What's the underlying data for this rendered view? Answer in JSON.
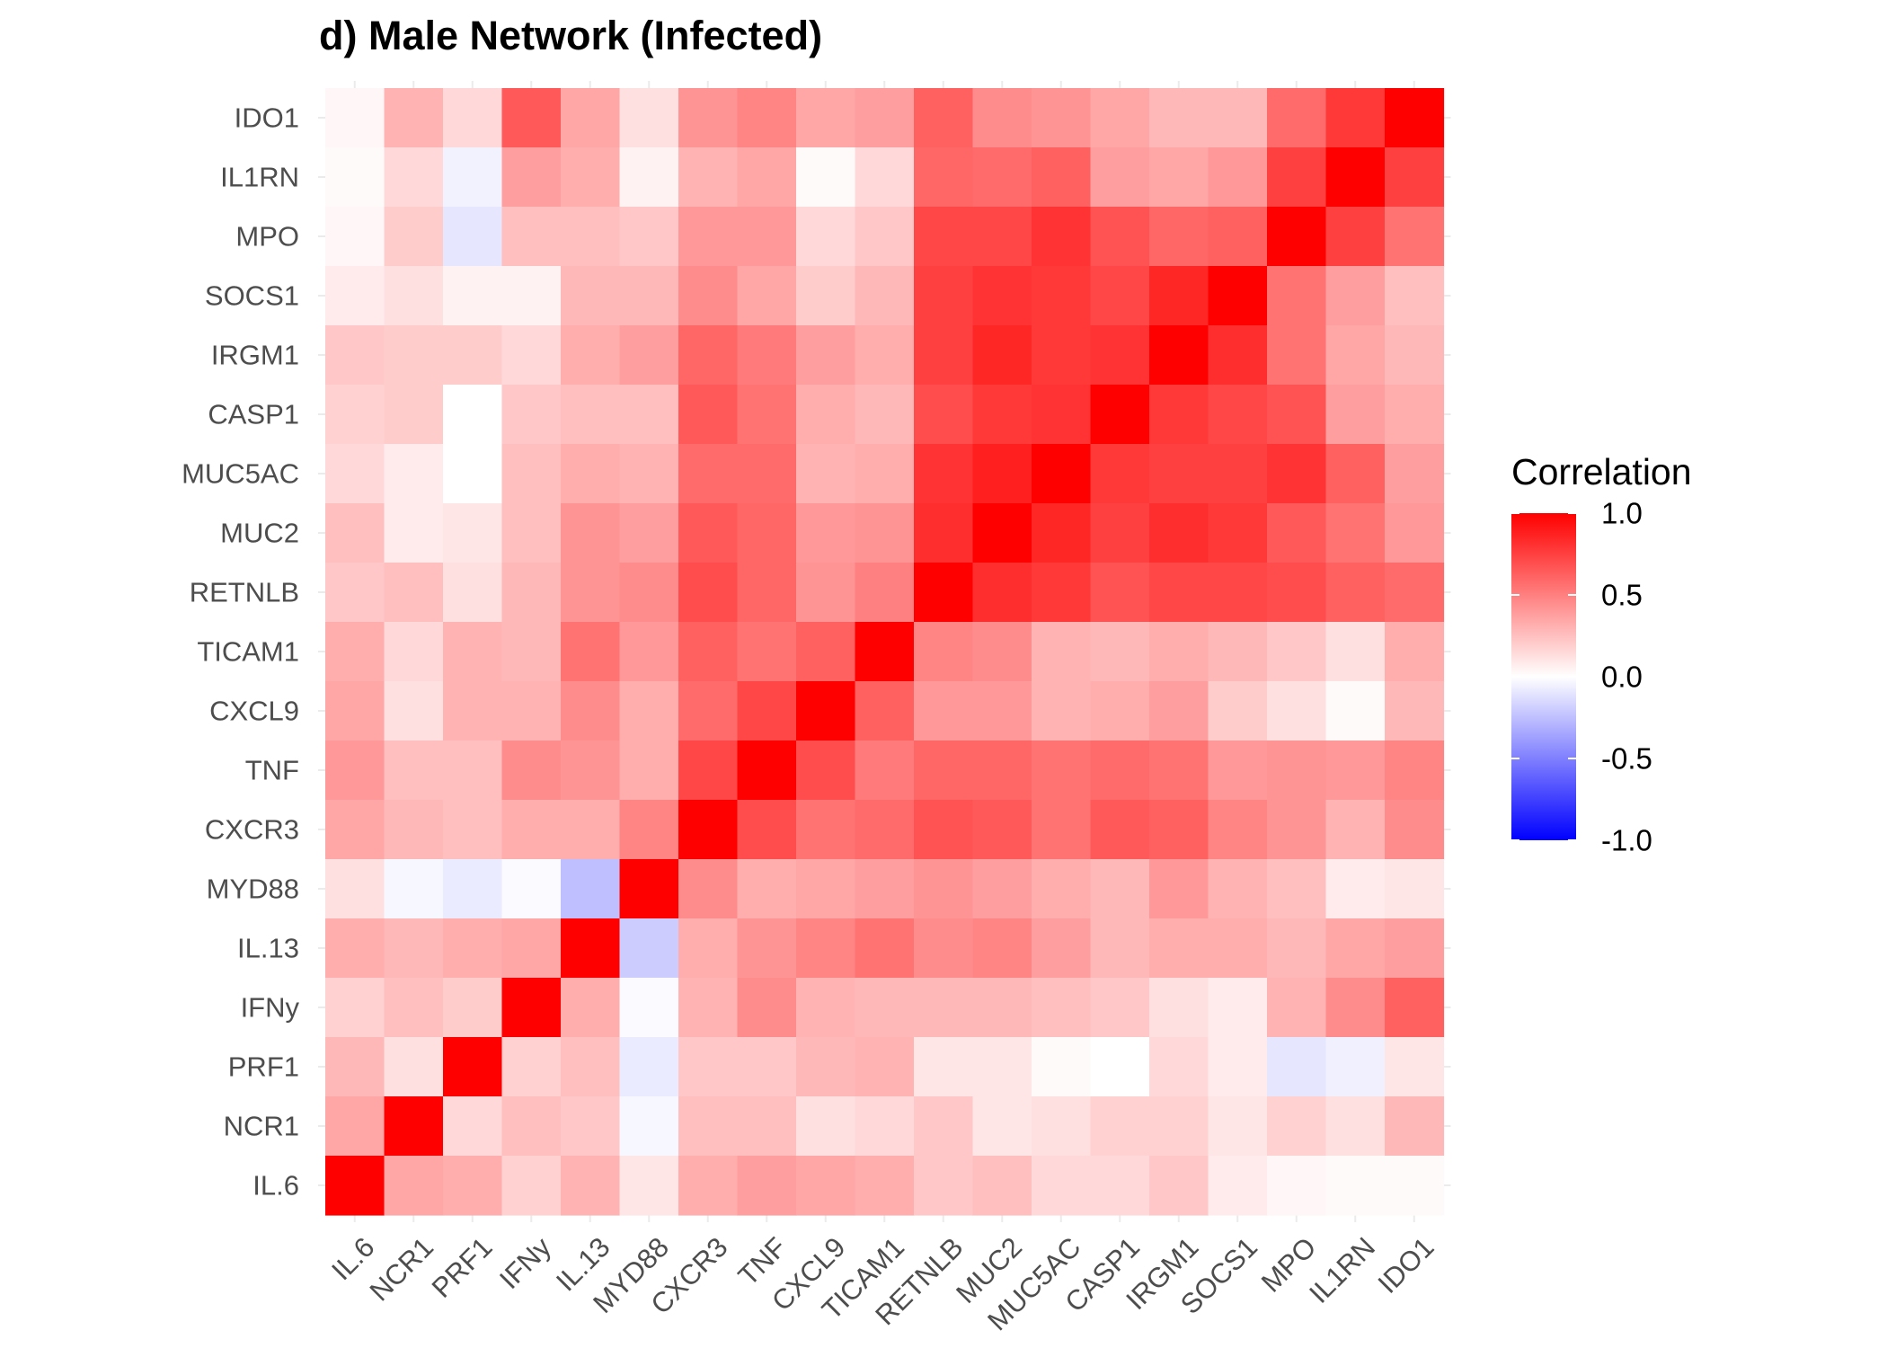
{
  "chart_data": {
    "type": "heatmap",
    "title": "d) Male Network (Infected)",
    "xlabel": "",
    "ylabel": "",
    "x_labels": [
      "IL.6",
      "NCR1",
      "PRF1",
      "IFNy",
      "IL.13",
      "MYD88",
      "CXCR3",
      "TNF",
      "CXCL9",
      "TICAM1",
      "RETNLB",
      "MUC2",
      "MUC5AC",
      "CASP1",
      "IRGM1",
      "SOCS1",
      "MPO",
      "IL1RN",
      "IDO1"
    ],
    "y_labels_top_to_bottom": [
      "IDO1",
      "IL1RN",
      "MPO",
      "SOCS1",
      "IRGM1",
      "CASP1",
      "MUC5AC",
      "MUC2",
      "RETNLB",
      "TICAM1",
      "CXCL9",
      "TNF",
      "CXCR3",
      "MYD88",
      "IL.13",
      "IFNy",
      "PRF1",
      "NCR1",
      "IL.6"
    ],
    "values": [
      [
        0.03,
        0.3,
        0.15,
        0.65,
        0.35,
        0.12,
        0.42,
        0.48,
        0.35,
        0.38,
        0.62,
        0.45,
        0.42,
        0.35,
        0.28,
        0.28,
        0.58,
        0.78,
        1.0
      ],
      [
        0.02,
        0.15,
        -0.05,
        0.38,
        0.32,
        0.05,
        0.3,
        0.35,
        0.02,
        0.15,
        0.6,
        0.58,
        0.62,
        0.38,
        0.35,
        0.4,
        0.75,
        1.0,
        0.75
      ],
      [
        0.03,
        0.2,
        -0.1,
        0.25,
        0.25,
        0.22,
        0.4,
        0.4,
        0.15,
        0.22,
        0.72,
        0.72,
        0.8,
        0.68,
        0.6,
        0.62,
        1.0,
        0.75,
        0.55
      ],
      [
        0.08,
        0.12,
        0.05,
        0.05,
        0.28,
        0.28,
        0.45,
        0.35,
        0.2,
        0.28,
        0.75,
        0.8,
        0.78,
        0.72,
        0.85,
        1.0,
        0.55,
        0.38,
        0.25
      ],
      [
        0.22,
        0.2,
        0.2,
        0.15,
        0.32,
        0.38,
        0.6,
        0.52,
        0.38,
        0.32,
        0.75,
        0.85,
        0.78,
        0.8,
        1.0,
        0.82,
        0.55,
        0.35,
        0.28
      ],
      [
        0.18,
        0.2,
        0.0,
        0.22,
        0.25,
        0.25,
        0.65,
        0.55,
        0.32,
        0.28,
        0.7,
        0.78,
        0.8,
        1.0,
        0.78,
        0.72,
        0.68,
        0.38,
        0.32
      ],
      [
        0.15,
        0.08,
        0.0,
        0.25,
        0.32,
        0.3,
        0.58,
        0.58,
        0.3,
        0.32,
        0.8,
        0.88,
        1.0,
        0.78,
        0.75,
        0.75,
        0.8,
        0.62,
        0.38
      ],
      [
        0.25,
        0.08,
        0.1,
        0.25,
        0.42,
        0.38,
        0.65,
        0.6,
        0.4,
        0.42,
        0.82,
        1.0,
        0.85,
        0.75,
        0.82,
        0.78,
        0.65,
        0.55,
        0.4
      ],
      [
        0.22,
        0.25,
        0.12,
        0.28,
        0.42,
        0.45,
        0.7,
        0.6,
        0.42,
        0.5,
        1.0,
        0.82,
        0.78,
        0.68,
        0.72,
        0.72,
        0.7,
        0.62,
        0.58
      ],
      [
        0.32,
        0.15,
        0.3,
        0.28,
        0.55,
        0.4,
        0.62,
        0.55,
        0.62,
        1.0,
        0.48,
        0.45,
        0.3,
        0.28,
        0.32,
        0.28,
        0.22,
        0.12,
        0.32
      ],
      [
        0.35,
        0.12,
        0.3,
        0.3,
        0.45,
        0.32,
        0.58,
        0.72,
        1.0,
        0.62,
        0.4,
        0.4,
        0.3,
        0.32,
        0.38,
        0.2,
        0.12,
        0.02,
        0.28
      ],
      [
        0.4,
        0.25,
        0.25,
        0.45,
        0.42,
        0.32,
        0.72,
        1.0,
        0.7,
        0.52,
        0.6,
        0.6,
        0.55,
        0.58,
        0.55,
        0.4,
        0.42,
        0.4,
        0.48
      ],
      [
        0.35,
        0.28,
        0.25,
        0.32,
        0.32,
        0.48,
        1.0,
        0.7,
        0.55,
        0.58,
        0.68,
        0.65,
        0.55,
        0.65,
        0.62,
        0.48,
        0.42,
        0.3,
        0.45
      ],
      [
        0.12,
        -0.03,
        -0.08,
        -0.02,
        -0.25,
        1.0,
        0.45,
        0.32,
        0.35,
        0.38,
        0.42,
        0.38,
        0.32,
        0.28,
        0.4,
        0.3,
        0.25,
        0.08,
        0.1
      ],
      [
        0.32,
        0.28,
        0.32,
        0.35,
        1.0,
        -0.2,
        0.32,
        0.42,
        0.48,
        0.55,
        0.45,
        0.48,
        0.38,
        0.28,
        0.32,
        0.32,
        0.28,
        0.35,
        0.38
      ],
      [
        0.18,
        0.25,
        0.2,
        1.0,
        0.32,
        -0.02,
        0.3,
        0.45,
        0.3,
        0.28,
        0.28,
        0.28,
        0.25,
        0.22,
        0.12,
        0.08,
        0.3,
        0.45,
        0.62
      ],
      [
        0.28,
        0.12,
        1.0,
        0.18,
        0.25,
        -0.08,
        0.22,
        0.22,
        0.28,
        0.3,
        0.1,
        0.1,
        0.02,
        0.0,
        0.15,
        0.08,
        -0.1,
        -0.06,
        0.1
      ],
      [
        0.35,
        1.0,
        0.15,
        0.25,
        0.22,
        -0.03,
        0.25,
        0.25,
        0.12,
        0.15,
        0.22,
        0.1,
        0.12,
        0.18,
        0.18,
        0.1,
        0.18,
        0.12,
        0.28
      ],
      [
        1.0,
        0.35,
        0.32,
        0.18,
        0.3,
        0.1,
        0.32,
        0.38,
        0.35,
        0.32,
        0.22,
        0.25,
        0.15,
        0.15,
        0.22,
        0.08,
        0.03,
        0.02,
        0.02
      ]
    ],
    "legend": {
      "title": "Correlation",
      "ticks": [
        "1.0",
        "0.5",
        "0.0",
        "-0.5",
        "-1.0"
      ],
      "range": [
        -1,
        1
      ],
      "position": "right"
    },
    "colors": {
      "low": "#0000ff",
      "mid": "#ffffff",
      "high": "#ff0000"
    },
    "grid": true
  }
}
